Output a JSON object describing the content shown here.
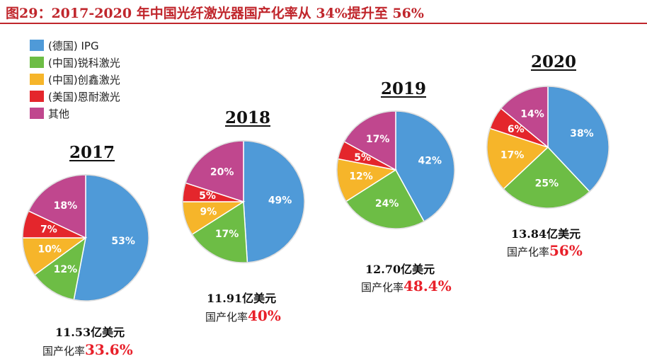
{
  "title": "图29：2017-2020 年中国光纤激光器国产化率从 34%提升至 56%",
  "chart_data": {
    "type": "pie",
    "legend": [
      "(德国) IPG",
      "(中国)锐科激光",
      "(中国)创鑫激光",
      "(美国)恩耐激光",
      "其他"
    ],
    "colors": [
      "#4f9ad8",
      "#6dbd45",
      "#f6b52a",
      "#e4262c",
      "#c0478e"
    ],
    "legend_position": "top-left",
    "charts": [
      {
        "year": "2017",
        "values": [
          53,
          12,
          10,
          7,
          18
        ],
        "labels": [
          "53%",
          "12%",
          "10%",
          "7%",
          "18%"
        ],
        "market_size": "11.53亿美元",
        "localization_label": "国产化率",
        "localization_rate": "33.6%"
      },
      {
        "year": "2018",
        "values": [
          49,
          17,
          9,
          5,
          20
        ],
        "labels": [
          "49%",
          "17%",
          "9%",
          "5%",
          "20%"
        ],
        "market_size": "11.91亿美元",
        "localization_label": "国产化率",
        "localization_rate": "40%"
      },
      {
        "year": "2019",
        "values": [
          42,
          24,
          12,
          5,
          17
        ],
        "labels": [
          "42%",
          "24%",
          "12%",
          "5%",
          "17%"
        ],
        "market_size": "12.70亿美元",
        "localization_label": "国产化率",
        "localization_rate": "48.4%"
      },
      {
        "year": "2020",
        "values": [
          38,
          25,
          17,
          6,
          14
        ],
        "labels": [
          "38%",
          "25%",
          "17%",
          "6%",
          "14%"
        ],
        "market_size": "13.84亿美元",
        "localization_label": "国产化率",
        "localization_rate": "56%"
      }
    ]
  }
}
